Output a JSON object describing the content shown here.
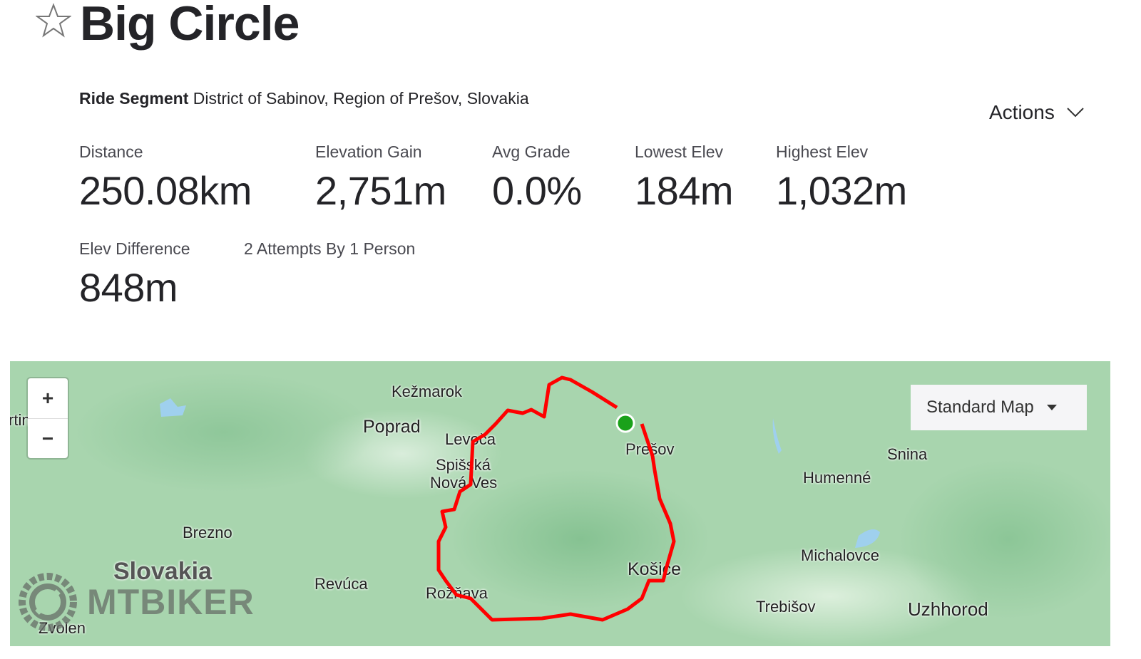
{
  "title": "Big Circle",
  "subtitle": {
    "type": "Ride Segment",
    "location": "District of Sabinov, Region of Prešov, Slovakia"
  },
  "actions_label": "Actions",
  "stats": [
    {
      "label": "Distance",
      "value": "250.08km"
    },
    {
      "label": "Elevation Gain",
      "value": "2,751m"
    },
    {
      "label": "Avg Grade",
      "value": "0.0%"
    },
    {
      "label": "Lowest Elev",
      "value": "184m"
    },
    {
      "label": "Highest Elev",
      "value": "1,032m"
    },
    {
      "label": "Elev Difference",
      "value": "848m"
    }
  ],
  "attempts": "2 Attempts By 1 Person",
  "map": {
    "zoom_in": "+",
    "zoom_out": "−",
    "map_type": "Standard Map",
    "country_label": "Slovakia",
    "watermark": "MTBIKER",
    "places": [
      "Kežmarok",
      "Poprad",
      "Levoča",
      "Spišská",
      "Nová Ves",
      "Prešov",
      "Snina",
      "Humenné",
      "Brezno",
      "Michalovce",
      "Košice",
      "Revúca",
      "Rožňava",
      "Trebišov",
      "Uzhhorod",
      "Zvolen",
      "rtin"
    ],
    "route_color": "#ff0000",
    "start_color": "#1aa11a"
  }
}
